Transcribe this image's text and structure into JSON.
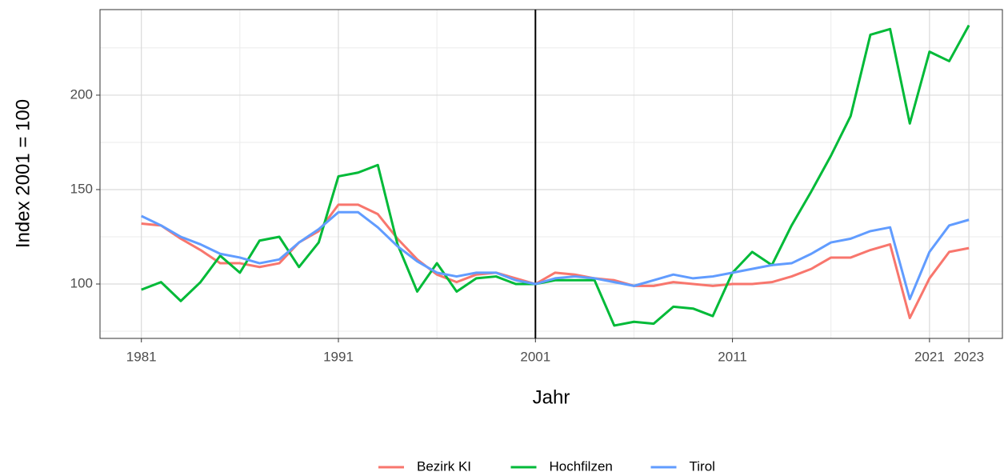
{
  "chart_data": {
    "type": "line",
    "x_label": "Jahr",
    "y_label": "Index 2001 = 100",
    "x": [
      1981,
      1982,
      1983,
      1984,
      1985,
      1986,
      1987,
      1988,
      1989,
      1990,
      1991,
      1992,
      1993,
      1994,
      1995,
      1996,
      1997,
      1998,
      1999,
      2000,
      2001,
      2002,
      2003,
      2004,
      2005,
      2006,
      2007,
      2008,
      2009,
      2010,
      2011,
      2012,
      2013,
      2014,
      2015,
      2016,
      2017,
      2018,
      2019,
      2020,
      2021,
      2022,
      2023
    ],
    "series": [
      {
        "name": "Bezirk KI",
        "color": "#F8766D",
        "values": [
          132,
          131,
          124,
          118,
          111,
          111,
          109,
          111,
          122,
          128,
          142,
          142,
          137,
          124,
          113,
          105,
          101,
          105,
          106,
          103,
          100,
          106,
          105,
          103,
          102,
          99,
          99,
          101,
          100,
          99,
          100,
          100,
          101,
          104,
          108,
          114,
          114,
          118,
          121,
          82,
          103,
          117,
          119
        ]
      },
      {
        "name": "Hochfilzen",
        "color": "#00BA38",
        "values": [
          97,
          101,
          91,
          101,
          115,
          106,
          123,
          125,
          109,
          122,
          157,
          159,
          163,
          121,
          96,
          111,
          96,
          103,
          104,
          100,
          100,
          102,
          102,
          102,
          78,
          80,
          79,
          88,
          87,
          83,
          106,
          117,
          110,
          131,
          149,
          168,
          189,
          232,
          235,
          185,
          223,
          218,
          237
        ]
      },
      {
        "name": "Tirol",
        "color": "#619CFF",
        "values": [
          136,
          131,
          125,
          121,
          116,
          114,
          111,
          113,
          122,
          129,
          138,
          138,
          130,
          120,
          112,
          106,
          104,
          106,
          106,
          102,
          100,
          103,
          104,
          103,
          101,
          99,
          102,
          105,
          103,
          104,
          106,
          108,
          110,
          111,
          116,
          122,
          124,
          128,
          130,
          92,
          117,
          131,
          134
        ]
      }
    ],
    "xlim": [
      1978.9,
      2024.7
    ],
    "xticks": [
      1981,
      1991,
      2001,
      2011,
      2021,
      2023
    ],
    "xticks_minor": [
      1986,
      1996,
      2006,
      2016
    ],
    "ylim": [
      71.2,
      245.3
    ],
    "yticks": [
      100,
      150,
      200
    ],
    "yticks_minor": [
      75,
      125,
      175,
      225
    ],
    "vline": 2001,
    "grid": true,
    "legend": "bottom"
  }
}
